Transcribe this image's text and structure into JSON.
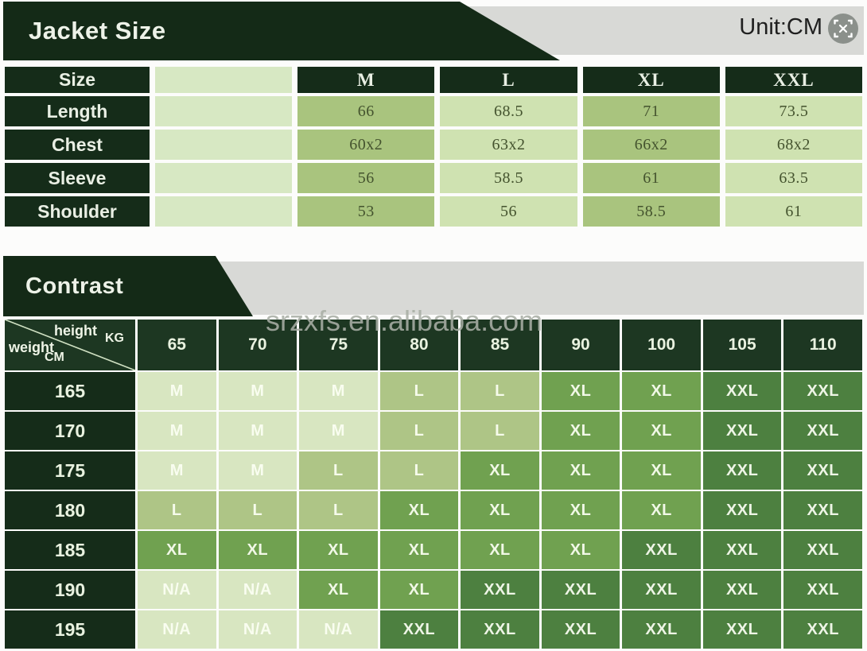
{
  "header": {
    "unit_label": "Unit:CM"
  },
  "colors": {
    "banner_green": "#142a17",
    "header_green": "#1d3722",
    "band_gray": "#d8d9d6",
    "cell_light": "#cfe2b1",
    "cell_medium": "#a9c47e",
    "cell_empty_column": "#d7e8c3"
  },
  "chart_data": [
    {
      "type": "table",
      "title": "Jacket Size",
      "corner_label": "Size",
      "columns": [
        "",
        "M",
        "L",
        "XL",
        "XXL"
      ],
      "rows": [
        {
          "label": "Length",
          "values": [
            "",
            "66",
            "68.5",
            "71",
            "73.5"
          ]
        },
        {
          "label": "Chest",
          "values": [
            "",
            "60x2",
            "63x2",
            "66x2",
            "68x2"
          ]
        },
        {
          "label": "Sleeve",
          "values": [
            "",
            "56",
            "58.5",
            "61",
            "63.5"
          ]
        },
        {
          "label": "Shoulder",
          "values": [
            "",
            "53",
            "56",
            "58.5",
            "61"
          ]
        }
      ]
    },
    {
      "type": "table",
      "title": "Contrast",
      "watermark": "srzxfs.en.alibaba.com",
      "x_axis": {
        "label": "height",
        "unit": "KG",
        "values": [
          "65",
          "70",
          "75",
          "80",
          "85",
          "90",
          "100",
          "105",
          "110"
        ]
      },
      "y_axis": {
        "label": "weight",
        "unit": "CM",
        "values": [
          "165",
          "170",
          "175",
          "180",
          "185",
          "190",
          "195"
        ]
      },
      "cells": [
        [
          "M",
          "M",
          "M",
          "L",
          "L",
          "XL",
          "XL",
          "XXL",
          "XXL"
        ],
        [
          "M",
          "M",
          "M",
          "L",
          "L",
          "XL",
          "XL",
          "XXL",
          "XXL"
        ],
        [
          "M",
          "M",
          "L",
          "L",
          "XL",
          "XL",
          "XL",
          "XXL",
          "XXL"
        ],
        [
          "L",
          "L",
          "L",
          "XL",
          "XL",
          "XL",
          "XL",
          "XXL",
          "XXL"
        ],
        [
          "XL",
          "XL",
          "XL",
          "XL",
          "XL",
          "XL",
          "XXL",
          "XXL",
          "XXL"
        ],
        [
          "N/A",
          "N/A",
          "XL",
          "XL",
          "XXL",
          "XXL",
          "XXL",
          "XXL",
          "XXL"
        ],
        [
          "N/A",
          "N/A",
          "N/A",
          "XXL",
          "XXL",
          "XXL",
          "XXL",
          "XXL",
          "XXL"
        ]
      ],
      "size_colors": {
        "M": "#d8e6c1",
        "L": "#aec586",
        "XL": "#70a150",
        "XXL": "#4d8040",
        "N/A": "#d8e6c1"
      }
    }
  ]
}
